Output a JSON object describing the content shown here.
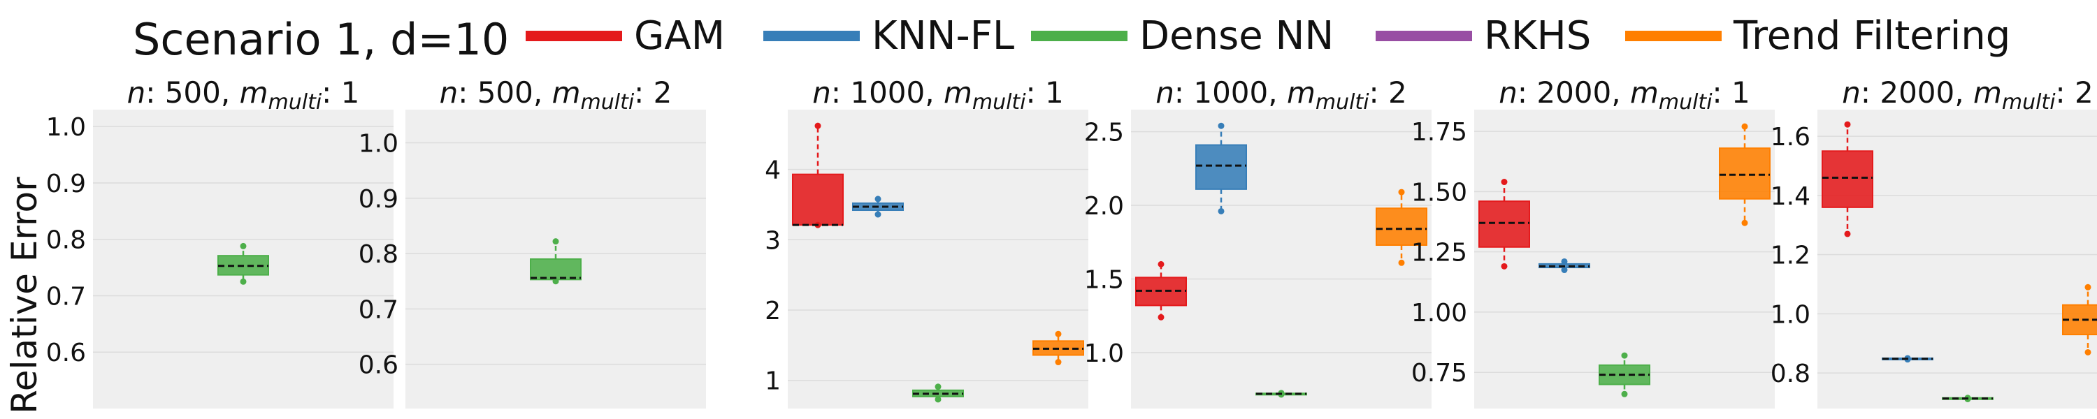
{
  "figure_title": "Scenario 1, d=10",
  "ylabel": "Relative Error",
  "legend": [
    {
      "label": "GAM",
      "color": "#e41a1c"
    },
    {
      "label": "KNN-FL",
      "color": "#377eb8"
    },
    {
      "label": "Dense NN",
      "color": "#4daf4a"
    },
    {
      "label": "RKHS",
      "color": "#984ea3"
    },
    {
      "label": "Trend Filtering",
      "color": "#ff7f00"
    }
  ],
  "chart_data": [
    {
      "type": "box",
      "title_n": "500",
      "title_m": "1",
      "ylim": [
        0.5,
        1.03
      ],
      "yticks": [
        0.6,
        0.7,
        0.8,
        0.9,
        1.0
      ],
      "yticklabels": [
        "0.6",
        "0.7",
        "0.8",
        "0.9",
        "1.0"
      ],
      "boxes": [
        {
          "method": "Dense NN",
          "slot": 2,
          "whislo": 0.725,
          "q1": 0.737,
          "med": 0.753,
          "q3": 0.771,
          "whishi": 0.788
        }
      ]
    },
    {
      "type": "box",
      "title_n": "500",
      "title_m": "2",
      "ylim": [
        0.52,
        1.06
      ],
      "yticks": [
        0.6,
        0.7,
        0.8,
        0.9,
        1.0
      ],
      "yticklabels": [
        "0.6",
        "0.7",
        "0.8",
        "0.9",
        "1.0"
      ],
      "boxes": [
        {
          "method": "Dense NN",
          "slot": 2,
          "whislo": 0.75,
          "q1": 0.753,
          "med": 0.756,
          "q3": 0.79,
          "whishi": 0.822
        }
      ]
    },
    {
      "type": "box",
      "title_n": "1000",
      "title_m": "1",
      "ylim": [
        0.6,
        4.85
      ],
      "yticks": [
        1,
        2,
        3,
        4
      ],
      "yticklabels": [
        "1",
        "2",
        "3",
        "4"
      ],
      "boxes": [
        {
          "method": "GAM",
          "slot": 0,
          "whislo": 3.21,
          "q1": 3.21,
          "med": 3.21,
          "q3": 3.93,
          "whishi": 4.62
        },
        {
          "method": "KNN-FL",
          "slot": 1,
          "whislo": 3.36,
          "q1": 3.42,
          "med": 3.47,
          "q3": 3.52,
          "whishi": 3.58
        },
        {
          "method": "Dense NN",
          "slot": 2,
          "whislo": 0.73,
          "q1": 0.77,
          "med": 0.81,
          "q3": 0.86,
          "whishi": 0.91
        },
        {
          "method": "Trend Filtering",
          "slot": 4,
          "whislo": 1.26,
          "q1": 1.36,
          "med": 1.45,
          "q3": 1.56,
          "whishi": 1.66
        }
      ]
    },
    {
      "type": "box",
      "title_n": "1000",
      "title_m": "2",
      "ylim": [
        0.62,
        2.65
      ],
      "yticks": [
        1.0,
        1.5,
        2.0,
        2.5
      ],
      "yticklabels": [
        "1.0",
        "1.5",
        "2.0",
        "2.5"
      ],
      "boxes": [
        {
          "method": "GAM",
          "slot": 0,
          "whislo": 1.24,
          "q1": 1.32,
          "med": 1.42,
          "q3": 1.51,
          "whishi": 1.6
        },
        {
          "method": "KNN-FL",
          "slot": 1,
          "whislo": 1.96,
          "q1": 2.11,
          "med": 2.27,
          "q3": 2.41,
          "whishi": 2.54
        },
        {
          "method": "Dense NN",
          "slot": 2,
          "whislo": 0.715,
          "q1": 0.715,
          "med": 0.72,
          "q3": 0.723,
          "whishi": 0.725
        },
        {
          "method": "Trend Filtering",
          "slot": 4,
          "whislo": 1.61,
          "q1": 1.73,
          "med": 1.84,
          "q3": 1.98,
          "whishi": 2.09
        }
      ]
    },
    {
      "type": "box",
      "title_n": "2000",
      "title_m": "1",
      "ylim": [
        0.6,
        1.84
      ],
      "yticks": [
        0.75,
        1.0,
        1.25,
        1.5,
        1.75
      ],
      "yticklabels": [
        "0.75",
        "1.00",
        "1.25",
        "1.50",
        "1.75"
      ],
      "boxes": [
        {
          "method": "GAM",
          "slot": 0,
          "whislo": 1.19,
          "q1": 1.27,
          "med": 1.37,
          "q3": 1.46,
          "whishi": 1.54
        },
        {
          "method": "KNN-FL",
          "slot": 1,
          "whislo": 1.175,
          "q1": 1.185,
          "med": 1.19,
          "q3": 1.2,
          "whishi": 1.21
        },
        {
          "method": "Dense NN",
          "slot": 2,
          "whislo": 0.66,
          "q1": 0.7,
          "med": 0.74,
          "q3": 0.78,
          "whishi": 0.82
        },
        {
          "method": "Trend Filtering",
          "slot": 4,
          "whislo": 1.37,
          "q1": 1.47,
          "med": 1.57,
          "q3": 1.68,
          "whishi": 1.77
        }
      ]
    },
    {
      "type": "box",
      "title_n": "2000",
      "title_m": "2",
      "ylim": [
        0.68,
        1.69
      ],
      "yticks": [
        0.8,
        1.0,
        1.2,
        1.4,
        1.6
      ],
      "yticklabels": [
        "0.8",
        "1.0",
        "1.2",
        "1.4",
        "1.6"
      ],
      "boxes": [
        {
          "method": "GAM",
          "slot": 0,
          "whislo": 1.27,
          "q1": 1.36,
          "med": 1.46,
          "q3": 1.55,
          "whishi": 1.64
        },
        {
          "method": "KNN-FL",
          "slot": 1,
          "whislo": 0.846,
          "q1": 0.846,
          "med": 0.848,
          "q3": 0.85,
          "whishi": 0.85
        },
        {
          "method": "Dense NN",
          "slot": 2,
          "whislo": 0.712,
          "q1": 0.712,
          "med": 0.714,
          "q3": 0.716,
          "whishi": 0.716
        },
        {
          "method": "Trend Filtering",
          "slot": 4,
          "whislo": 0.87,
          "q1": 0.93,
          "med": 0.98,
          "q3": 1.03,
          "whishi": 1.09
        }
      ]
    }
  ]
}
